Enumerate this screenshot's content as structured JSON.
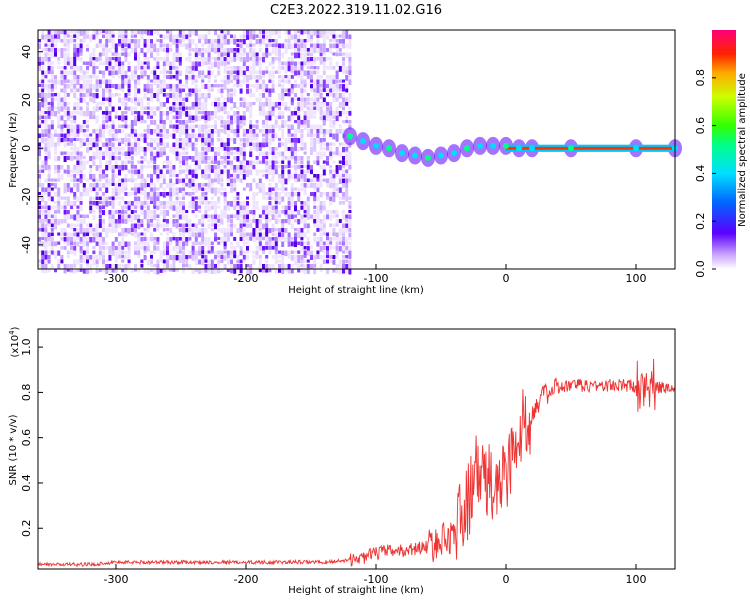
{
  "title": "C2E3.2022.319.11.02.G16",
  "colors": {
    "snr_line": "#ee3333",
    "axis": "#000000",
    "spectrogram_low": "#e6d6ff",
    "spectrogram_mid": "#6a11ff",
    "bg": "#ffffff"
  },
  "chart_data": [
    {
      "type": "heatmap",
      "title": "",
      "xlabel": "Height of straight line (km)",
      "ylabel": "Frequency (Hz)",
      "xlim": [
        -360,
        130
      ],
      "ylim": [
        -50,
        49
      ],
      "x_ticks": [
        -300,
        -200,
        -100,
        0,
        100
      ],
      "x_tick_labels": [
        "-300",
        "-200",
        "-100",
        "0",
        "100"
      ],
      "y_ticks": [
        -40,
        -20,
        0,
        20,
        40
      ],
      "y_tick_labels": [
        "-40",
        "-20",
        "0",
        "20",
        "40"
      ],
      "colorbar": {
        "label": "Normalized spectral amplitude",
        "range": [
          0.0,
          1.0
        ],
        "ticks": [
          0.0,
          0.2,
          0.4,
          0.6,
          0.8
        ],
        "tick_labels": [
          "0.0",
          "0.2",
          "0.4",
          "0.6",
          "0.8"
        ],
        "colormap": "rainbow"
      },
      "noise_region_x": [
        -360,
        -120
      ],
      "signal_trace": {
        "x": [
          -120,
          -110,
          -100,
          -90,
          -80,
          -70,
          -60,
          -50,
          -40,
          -30,
          -20,
          -10,
          0,
          10,
          20,
          50,
          100,
          130
        ],
        "y": [
          5,
          3,
          1,
          0,
          -2,
          -3,
          -4,
          -3,
          -2,
          0,
          1,
          1,
          1,
          0,
          0,
          0,
          0,
          0
        ]
      },
      "grid": false
    },
    {
      "type": "line",
      "title": "",
      "xlabel": "Height of straight line (km)",
      "ylabel": "SNR (10 * v/v)",
      "y_multiplier_label": "(x10",
      "y_multiplier_exp": "4",
      "xlim": [
        -360,
        130
      ],
      "ylim": [
        0.02,
        1.08
      ],
      "x_ticks": [
        -300,
        -200,
        -100,
        0,
        100
      ],
      "x_tick_labels": [
        "-300",
        "-200",
        "-100",
        "0",
        "100"
      ],
      "y_ticks": [
        0.2,
        0.4,
        0.6,
        0.8,
        1.0
      ],
      "y_tick_labels": [
        "0.2",
        "0.4",
        "0.6",
        "0.8",
        "1.0"
      ],
      "series": [
        {
          "x": [
            -360,
            -340,
            -320,
            -300,
            -280,
            -260,
            -240,
            -220,
            -200,
            -180,
            -160,
            -140,
            -120,
            -110,
            -100,
            -90,
            -80,
            -70,
            -60,
            -50,
            -40,
            -30,
            -25,
            -20,
            -15,
            -10,
            -5,
            0,
            5,
            10,
            15,
            20,
            25,
            30,
            40,
            50,
            60,
            70,
            80,
            90,
            100,
            105,
            108,
            110,
            115,
            120,
            130
          ],
          "y": [
            0.04,
            0.04,
            0.04,
            0.05,
            0.05,
            0.05,
            0.05,
            0.05,
            0.05,
            0.05,
            0.05,
            0.05,
            0.06,
            0.07,
            0.09,
            0.1,
            0.1,
            0.11,
            0.12,
            0.14,
            0.18,
            0.3,
            0.42,
            0.45,
            0.4,
            0.38,
            0.4,
            0.45,
            0.52,
            0.6,
            0.66,
            0.72,
            0.76,
            0.79,
            0.82,
            0.83,
            0.83,
            0.83,
            0.83,
            0.83,
            0.83,
            0.84,
            0.85,
            0.85,
            0.82,
            0.82,
            0.82
          ]
        }
      ],
      "grid": false
    }
  ]
}
